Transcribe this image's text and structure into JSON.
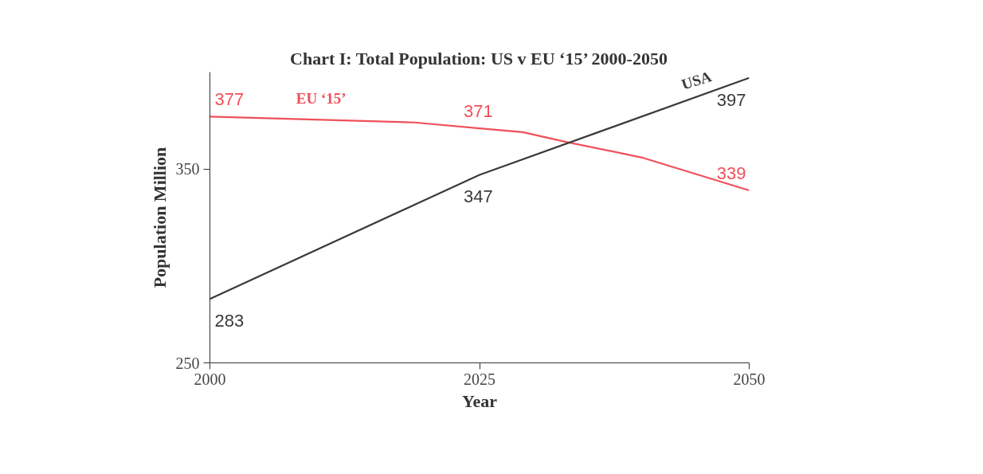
{
  "chart_data": {
    "type": "line",
    "title": "Chart I: Total Population: US v EU ‘15’ 2000-2050",
    "xlabel": "Year",
    "ylabel": "Population Million",
    "xlim": [
      2000,
      2050
    ],
    "ylim": [
      250,
      400
    ],
    "xticks": [
      2000,
      2025,
      2050
    ],
    "yticks": [
      250,
      350
    ],
    "grid": false,
    "marker": "none",
    "line_style": "solid",
    "series": [
      {
        "name": "EU ‘15’",
        "color": "#f0505a",
        "x": [
          2000,
          2019,
          2025,
          2029,
          2033,
          2040,
          2050
        ],
        "values": [
          377,
          374,
          371,
          369,
          364,
          356,
          339
        ],
        "value_labels": [
          "377",
          null,
          "371",
          null,
          null,
          null,
          "339"
        ]
      },
      {
        "name": "USA",
        "color": "#3a3a3a",
        "x": [
          2000,
          2025,
          2050
        ],
        "values": [
          283,
          347,
          397
        ],
        "value_labels": [
          "283",
          "347",
          "397"
        ]
      }
    ]
  }
}
